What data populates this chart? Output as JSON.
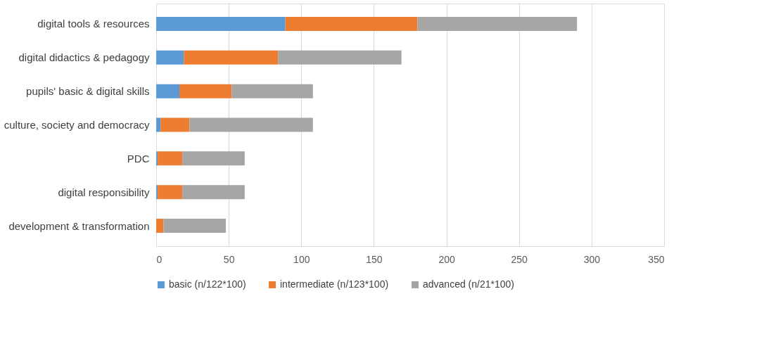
{
  "chart_data": {
    "type": "bar",
    "orientation": "horizontal",
    "stacked": true,
    "categories": [
      "digital tools & resources",
      "digital didactics & pedagogy",
      "pupils' basic & digital skills",
      "culture, society and democracy",
      "PDC",
      "digital responsibility",
      "development & transformation"
    ],
    "series": [
      {
        "name": "basic (n/122*100)",
        "color": "#5b9bd5",
        "values": [
          89,
          19,
          16,
          3,
          1,
          1,
          0
        ]
      },
      {
        "name": "intermediate (n/123*100)",
        "color": "#ed7d31",
        "values": [
          91,
          65,
          36,
          20,
          17,
          17,
          5
        ]
      },
      {
        "name": "advanced (n/21*100)",
        "color": "#a5a5a5",
        "values": [
          110,
          85,
          56,
          85,
          43,
          43,
          43
        ]
      }
    ],
    "xlim": [
      0,
      350
    ],
    "xticks": [
      0,
      50,
      100,
      150,
      200,
      250,
      300,
      350
    ],
    "grid": "x",
    "legend": "bottom"
  }
}
